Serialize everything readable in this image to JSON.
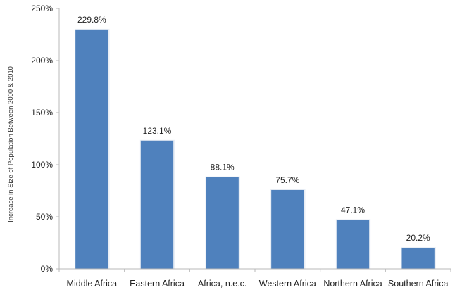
{
  "chart_data": {
    "type": "bar",
    "title": "",
    "xlabel": "",
    "ylabel": "Increase in Size of Population Between 2000 & 2010",
    "categories": [
      "Middle Africa",
      "Eastern Africa",
      "Africa, n.e.c.",
      "Western Africa",
      "Northern Africa",
      "Southern Africa"
    ],
    "values": [
      229.8,
      123.1,
      88.1,
      75.7,
      47.1,
      20.2
    ],
    "data_labels": [
      "229.8%",
      "123.1%",
      "88.1%",
      "75.7%",
      "47.1%",
      "20.2%"
    ],
    "ylim": [
      0,
      250
    ],
    "yticks": [
      0,
      50,
      100,
      150,
      200,
      250
    ],
    "ytick_labels": [
      "0%",
      "50%",
      "100%",
      "150%",
      "200%",
      "250%"
    ],
    "grid": false,
    "legend": "none",
    "bar_color": "#4f81bd"
  }
}
